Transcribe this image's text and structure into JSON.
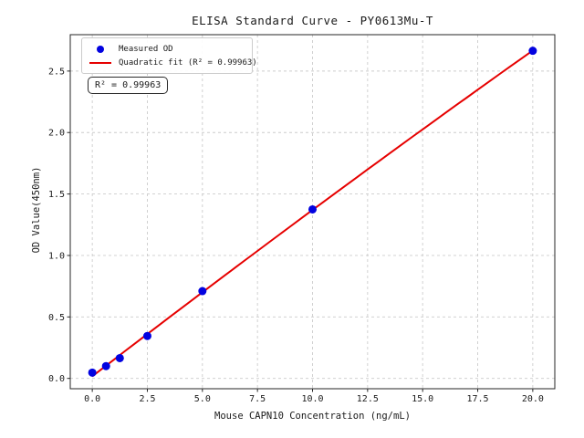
{
  "chart_data": {
    "type": "scatter",
    "title": "ELISA Standard Curve - PY0613Mu-T",
    "xlabel": "Mouse CAPN10 Concentration (ng/mL)",
    "ylabel": "OD Value(450nm)",
    "x": [
      0,
      0.625,
      1.25,
      2.5,
      5,
      10,
      20
    ],
    "y": [
      0.047,
      0.1,
      0.165,
      0.345,
      0.71,
      1.375,
      2.665
    ],
    "series": [
      {
        "name": "Measured OD",
        "type": "scatter",
        "color": "#0202e0"
      },
      {
        "name": "Quadratic fit (R² = 0.99963)",
        "type": "line",
        "color": "#e60000"
      }
    ],
    "fit": {
      "kind": "quadratic",
      "coeffs": [
        0.0173,
        0.138,
        -0.000274
      ],
      "r_squared": 0.99963,
      "x_range": [
        0,
        20
      ]
    },
    "annotation": "R² = 0.99963",
    "xlim": [
      -1,
      21
    ],
    "ylim": [
      -0.084,
      2.796
    ],
    "xticks": [
      0,
      2.5,
      5,
      7.5,
      10,
      12.5,
      15,
      17.5,
      20
    ],
    "xtick_labels": [
      "0.0",
      "2.5",
      "5.0",
      "7.5",
      "10.0",
      "12.5",
      "15.0",
      "17.5",
      "20.0"
    ],
    "yticks": [
      0,
      0.5,
      1,
      1.5,
      2,
      2.5
    ],
    "ytick_labels": [
      "0.0",
      "0.5",
      "1.0",
      "1.5",
      "2.0",
      "2.5"
    ],
    "grid": true,
    "legend_position": "upper left",
    "colors": {
      "points": "#0202e0",
      "line": "#e60000",
      "grid": "#cccccc",
      "spine": "#262626",
      "text": "#1a1a1a"
    }
  }
}
